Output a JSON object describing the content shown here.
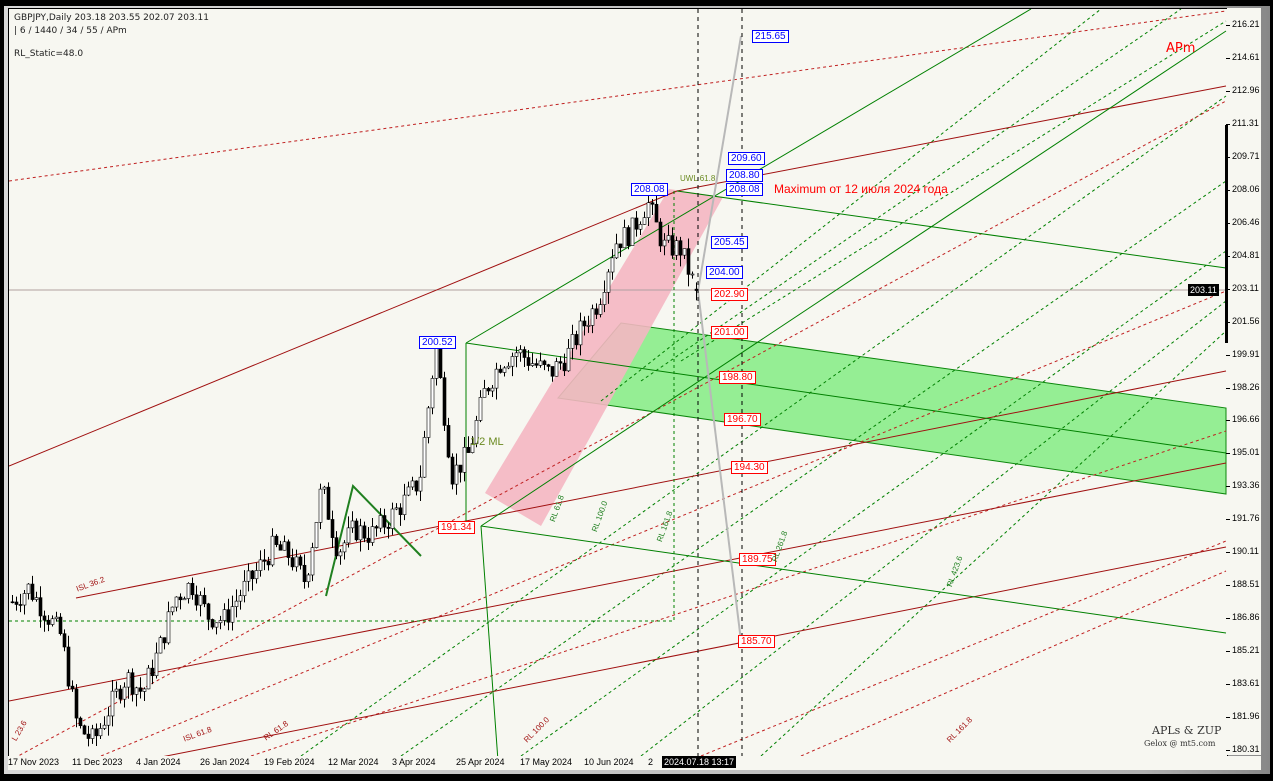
{
  "header": {
    "symbol_line": "GBPJPY,Daily  203.18 203.55 202.07 203.11",
    "params_line": "| 6 / 1440 / 34 / 55 / APm",
    "rl_static": "RL_Static=48.0"
  },
  "brand": {
    "apm": "APm",
    "credit_title": "APLs & ZUP",
    "credit_sub": "Gelox @ mt5.com"
  },
  "annotation": "Maximum от 12 июля 2024 года",
  "price_axis": [
    "216.21",
    "214.61",
    "212.96",
    "211.31",
    "209.71",
    "208.06",
    "206.46",
    "204.81",
    "203.11",
    "201.56",
    "199.91",
    "198.26",
    "196.66",
    "195.01",
    "193.36",
    "191.76",
    "190.11",
    "188.51",
    "186.86",
    "185.21",
    "183.61",
    "181.96",
    "180.31"
  ],
  "current_price": "203.11",
  "time_axis": [
    "17 Nov 2023",
    "11 Dec 2023",
    "4 Jan 2024",
    "26 Jan 2024",
    "19 Feb 2024",
    "12 Mar 2024",
    "3 Apr 2024",
    "25 Apr 2024",
    "17 May 2024",
    "10 Jun 2024",
    "2"
  ],
  "cursor_time": "2024.07.18 13:17",
  "price_labels_right": [
    {
      "text": "215.65",
      "price": 215.65,
      "color": "blue"
    },
    {
      "text": "209.60",
      "price": 209.6,
      "color": "blue"
    },
    {
      "text": "208.80",
      "price": 208.8,
      "color": "blue"
    },
    {
      "text": "208.08",
      "price": 208.08,
      "color": "blue"
    },
    {
      "text": "205.45",
      "price": 205.45,
      "color": "blue"
    },
    {
      "text": "204.00",
      "price": 204.0,
      "color": "blue"
    },
    {
      "text": "202.90",
      "price": 202.9,
      "color": "red"
    },
    {
      "text": "201.00",
      "price": 201.0,
      "color": "red"
    },
    {
      "text": "198.80",
      "price": 198.8,
      "color": "red"
    },
    {
      "text": "196.70",
      "price": 196.7,
      "color": "red"
    },
    {
      "text": "194.30",
      "price": 194.3,
      "color": "red"
    },
    {
      "text": "189.75",
      "price": 189.75,
      "color": "red"
    },
    {
      "text": "185.70",
      "price": 185.7,
      "color": "red"
    }
  ],
  "price_labels_left": [
    {
      "text": "208.08",
      "price": 208.08,
      "color": "blue"
    },
    {
      "text": "200.52",
      "price": 200.52,
      "color": "blue"
    },
    {
      "text": "191.34",
      "price": 191.34,
      "color": "red"
    }
  ],
  "fib_labels": [
    "ISL 36.2",
    "ISL 61.8",
    "RL 61.8",
    "RL 100.0",
    "RL 161.8",
    "RL 261.8",
    "RL 423.6",
    "1/2 ML",
    "UWL 61.8",
    "RL 61.8",
    "RL 100.0",
    "RL 161.8",
    "L 23.6"
  ],
  "chart_data": {
    "type": "candlestick",
    "symbol": "GBPJPY",
    "timeframe": "Daily",
    "ylim": [
      180.31,
      216.21
    ],
    "last_bar": {
      "open": 203.18,
      "high": 203.55,
      "low": 202.07,
      "close": 203.11
    },
    "approx_closes": [
      187.7,
      188.4,
      187.2,
      186.0,
      181.5,
      180.8,
      182.5,
      184.0,
      183.2,
      185.3,
      187.9,
      188.6,
      187.0,
      186.8,
      188.1,
      189.2,
      190.4,
      190.0,
      188.7,
      193.4,
      190.2,
      191.3,
      191.0,
      191.7,
      192.6,
      193.7,
      200.4,
      194.0,
      195.0,
      198.1,
      199.6,
      200.1,
      199.5,
      199.0,
      199.8,
      201.3,
      202.6,
      205.5,
      206.0,
      207.5,
      205.3,
      205.2,
      203.1
    ],
    "max_price": 208.08,
    "max_date": "12 Jul 2024"
  },
  "colors": {
    "bg": "#f7f7f1",
    "green_zone": "#90ee90",
    "pink_zone": "#f4b6c2",
    "blue": "#0000ff",
    "red": "#ff0000",
    "dark_red": "#a01010",
    "green": "#008000"
  }
}
